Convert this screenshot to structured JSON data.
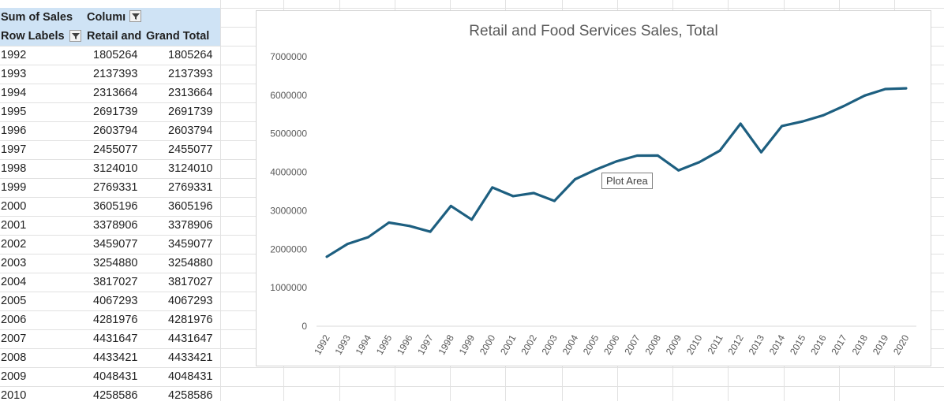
{
  "pivot": {
    "header1": {
      "label_a": "Sum of Sales",
      "label_b": "Columı"
    },
    "header2": {
      "label_a": "Row Labels",
      "label_b": "Retail and",
      "label_c": "Grand Total"
    },
    "rows": [
      {
        "year": "1992",
        "retail": "1805264",
        "total": "1805264"
      },
      {
        "year": "1993",
        "retail": "2137393",
        "total": "2137393"
      },
      {
        "year": "1994",
        "retail": "2313664",
        "total": "2313664"
      },
      {
        "year": "1995",
        "retail": "2691739",
        "total": "2691739"
      },
      {
        "year": "1996",
        "retail": "2603794",
        "total": "2603794"
      },
      {
        "year": "1997",
        "retail": "2455077",
        "total": "2455077"
      },
      {
        "year": "1998",
        "retail": "3124010",
        "total": "3124010"
      },
      {
        "year": "1999",
        "retail": "2769331",
        "total": "2769331"
      },
      {
        "year": "2000",
        "retail": "3605196",
        "total": "3605196"
      },
      {
        "year": "2001",
        "retail": "3378906",
        "total": "3378906"
      },
      {
        "year": "2002",
        "retail": "3459077",
        "total": "3459077"
      },
      {
        "year": "2003",
        "retail": "3254880",
        "total": "3254880"
      },
      {
        "year": "2004",
        "retail": "3817027",
        "total": "3817027"
      },
      {
        "year": "2005",
        "retail": "4067293",
        "total": "4067293"
      },
      {
        "year": "2006",
        "retail": "4281976",
        "total": "4281976"
      },
      {
        "year": "2007",
        "retail": "4431647",
        "total": "4431647"
      },
      {
        "year": "2008",
        "retail": "4433421",
        "total": "4433421"
      },
      {
        "year": "2009",
        "retail": "4048431",
        "total": "4048431"
      },
      {
        "year": "2010",
        "retail": "4258586",
        "total": "4258586"
      }
    ],
    "icons": {
      "column_filter": "filter-icon",
      "row_filter": "filter-sorted-icon"
    },
    "header_color": "#cfe3f5"
  },
  "chart_data": {
    "type": "line",
    "title": "Retail and Food Services Sales, Total",
    "categories": [
      "1992",
      "1993",
      "1994",
      "1995",
      "1996",
      "1997",
      "1998",
      "1999",
      "2000",
      "2001",
      "2002",
      "2003",
      "2004",
      "2005",
      "2006",
      "2007",
      "2008",
      "2009",
      "2010",
      "2011",
      "2012",
      "2013",
      "2014",
      "2015",
      "2016",
      "2017",
      "2018",
      "2019",
      "2020"
    ],
    "series": [
      {
        "values": [
          1805264,
          2137393,
          2313664,
          2691739,
          2603794,
          2455077,
          3124010,
          2769331,
          3605196,
          3378906,
          3459077,
          3254880,
          3817027,
          4067293,
          4281976,
          4431647,
          4433421,
          4048431,
          4258586,
          4560000,
          5260000,
          4520000,
          5200000,
          5320000,
          5480000,
          5720000,
          5990000,
          6160000,
          6180000
        ],
        "color": "#1d5f80"
      }
    ],
    "y_ticks": [
      "0",
      "1000000",
      "2000000",
      "3000000",
      "4000000",
      "5000000",
      "6000000",
      "7000000"
    ],
    "ylim": [
      0,
      7000000
    ],
    "grid": "horizontal baseline only",
    "legend": "none",
    "tooltip": "Plot Area"
  }
}
